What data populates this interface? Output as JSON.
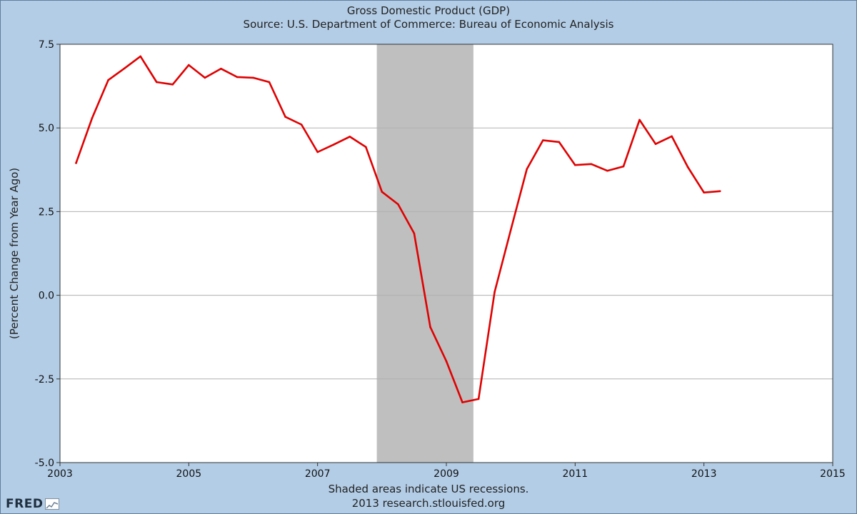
{
  "chart_data": {
    "type": "line",
    "title": "Gross Domestic Product (GDP)",
    "subtitle": "Source: U.S. Department of Commerce: Bureau of Economic Analysis",
    "xlabel": "",
    "ylabel": "(Percent Change from Year Ago)",
    "xlim": [
      2003,
      2015
    ],
    "ylim": [
      -5.0,
      7.5
    ],
    "x_ticks": [
      2003,
      2005,
      2007,
      2009,
      2011,
      2013,
      2015
    ],
    "x_tick_labels": [
      "2003",
      "2005",
      "2007",
      "2009",
      "2011",
      "2013",
      "2015"
    ],
    "y_ticks": [
      -5.0,
      -2.5,
      0.0,
      2.5,
      5.0,
      7.5
    ],
    "y_tick_labels": [
      "-5.0",
      "-2.5",
      "0.0",
      "2.5",
      "5.0",
      "7.5"
    ],
    "grid": true,
    "recessions": [
      {
        "start": 2007.92,
        "end": 2009.42
      }
    ],
    "series": [
      {
        "name": "GDP",
        "color": "#e00000",
        "x": [
          2003.25,
          2003.5,
          2003.75,
          2004.0,
          2004.25,
          2004.5,
          2004.75,
          2005.0,
          2005.25,
          2005.5,
          2005.75,
          2006.0,
          2006.25,
          2006.5,
          2006.75,
          2007.0,
          2007.25,
          2007.5,
          2007.75,
          2008.0,
          2008.25,
          2008.5,
          2008.75,
          2009.0,
          2009.25,
          2009.5,
          2009.75,
          2010.0,
          2010.25,
          2010.5,
          2010.75,
          2011.0,
          2011.25,
          2011.5,
          2011.75,
          2012.0,
          2012.25,
          2012.5,
          2012.75,
          2013.0,
          2013.25
        ],
        "values": [
          3.95,
          5.3,
          6.43,
          6.78,
          7.14,
          6.37,
          6.3,
          6.88,
          6.5,
          6.77,
          6.52,
          6.5,
          6.37,
          5.33,
          5.1,
          4.28,
          4.5,
          4.74,
          4.43,
          3.09,
          2.72,
          1.85,
          -0.95,
          -1.97,
          -3.2,
          -3.1,
          0.1,
          1.95,
          3.77,
          4.63,
          4.58,
          3.89,
          3.92,
          3.72,
          3.85,
          5.24,
          4.52,
          4.75,
          3.83,
          3.07,
          3.11
        ]
      }
    ]
  },
  "footer": {
    "note": "Shaded areas indicate US recessions.",
    "credit": "2013 research.stlouisfed.org",
    "logo_text": "FRED"
  },
  "colors": {
    "background": "#b3cde6",
    "plot_background": "#ffffff",
    "recession_shade": "#bfbfbf",
    "grid": "#b0b0b0",
    "line": "#e00000"
  }
}
